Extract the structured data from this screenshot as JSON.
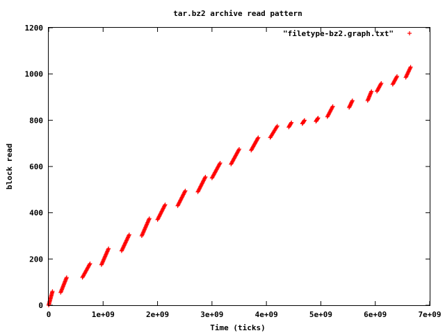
{
  "chart_data": {
    "type": "scatter",
    "title": "tar.bz2 archive read pattern",
    "xlabel": "Time (ticks)",
    "ylabel": "block read",
    "xlim": [
      0,
      7000000000
    ],
    "ylim": [
      0,
      1200
    ],
    "x_ticks": [
      {
        "value": 0,
        "label": "0"
      },
      {
        "value": 1000000000,
        "label": "1e+09"
      },
      {
        "value": 2000000000,
        "label": "2e+09"
      },
      {
        "value": 3000000000,
        "label": "3e+09"
      },
      {
        "value": 4000000000,
        "label": "4e+09"
      },
      {
        "value": 5000000000,
        "label": "5e+09"
      },
      {
        "value": 6000000000,
        "label": "6e+09"
      },
      {
        "value": 7000000000,
        "label": "7e+09"
      }
    ],
    "y_ticks": [
      {
        "value": 0,
        "label": "0"
      },
      {
        "value": 200,
        "label": "200"
      },
      {
        "value": 400,
        "label": "400"
      },
      {
        "value": 600,
        "label": "600"
      },
      {
        "value": 800,
        "label": "800"
      },
      {
        "value": 1000,
        "label": "1000"
      },
      {
        "value": 1200,
        "label": "1200"
      }
    ],
    "grid": false,
    "legend_position": "top-right",
    "marker": "plus",
    "marker_color": "#ff0000",
    "series": [
      {
        "name": "\"filetype-bz2.graph.txt\"",
        "segments": [
          {
            "x0": 0,
            "x1": 70000000,
            "y0": 0,
            "y1": 60
          },
          {
            "x0": 220000000,
            "x1": 330000000,
            "y0": 55,
            "y1": 120
          },
          {
            "x0": 620000000,
            "x1": 760000000,
            "y0": 120,
            "y1": 180
          },
          {
            "x0": 970000000,
            "x1": 1100000000,
            "y0": 175,
            "y1": 245
          },
          {
            "x0": 1340000000,
            "x1": 1480000000,
            "y0": 235,
            "y1": 305
          },
          {
            "x0": 1710000000,
            "x1": 1850000000,
            "y0": 300,
            "y1": 375
          },
          {
            "x0": 2000000000,
            "x1": 2140000000,
            "y0": 370,
            "y1": 435
          },
          {
            "x0": 2370000000,
            "x1": 2510000000,
            "y0": 430,
            "y1": 495
          },
          {
            "x0": 2740000000,
            "x1": 2880000000,
            "y0": 490,
            "y1": 555
          },
          {
            "x0": 3000000000,
            "x1": 3150000000,
            "y0": 550,
            "y1": 615
          },
          {
            "x0": 3350000000,
            "x1": 3500000000,
            "y0": 610,
            "y1": 675
          },
          {
            "x0": 3720000000,
            "x1": 3850000000,
            "y0": 670,
            "y1": 725
          },
          {
            "x0": 4070000000,
            "x1": 4200000000,
            "y0": 725,
            "y1": 775
          },
          {
            "x0": 4410000000,
            "x1": 4460000000,
            "y0": 770,
            "y1": 790
          },
          {
            "x0": 4660000000,
            "x1": 4700000000,
            "y0": 785,
            "y1": 800
          },
          {
            "x0": 4910000000,
            "x1": 4950000000,
            "y0": 795,
            "y1": 810
          },
          {
            "x0": 5120000000,
            "x1": 5220000000,
            "y0": 815,
            "y1": 860
          },
          {
            "x0": 5520000000,
            "x1": 5580000000,
            "y0": 855,
            "y1": 885
          },
          {
            "x0": 5860000000,
            "x1": 5930000000,
            "y0": 885,
            "y1": 925
          },
          {
            "x0": 6030000000,
            "x1": 6110000000,
            "y0": 925,
            "y1": 960
          },
          {
            "x0": 6320000000,
            "x1": 6400000000,
            "y0": 955,
            "y1": 990
          },
          {
            "x0": 6560000000,
            "x1": 6650000000,
            "y0": 985,
            "y1": 1030
          }
        ]
      }
    ]
  }
}
